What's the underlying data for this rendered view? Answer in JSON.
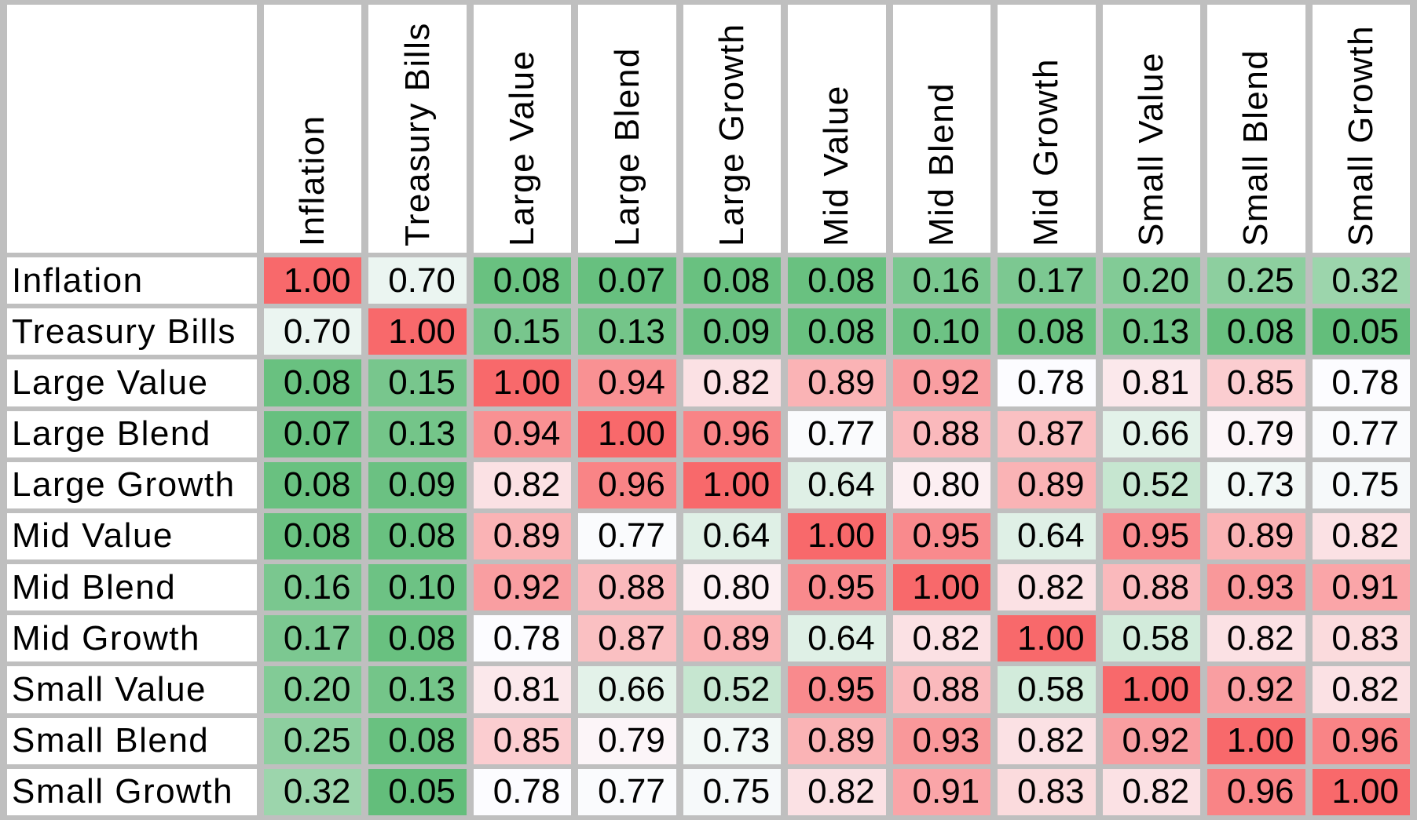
{
  "chart_data": {
    "type": "heatmap",
    "categories": [
      "Inflation",
      "Treasury Bills",
      "Large Value",
      "Large Blend",
      "Large Growth",
      "Mid Value",
      "Mid Blend",
      "Mid Growth",
      "Small Value",
      "Small Blend",
      "Small Growth"
    ],
    "matrix": [
      [
        1.0,
        0.7,
        0.08,
        0.07,
        0.08,
        0.08,
        0.16,
        0.17,
        0.2,
        0.25,
        0.32
      ],
      [
        0.7,
        1.0,
        0.15,
        0.13,
        0.09,
        0.08,
        0.1,
        0.08,
        0.13,
        0.08,
        0.05
      ],
      [
        0.08,
        0.15,
        1.0,
        0.94,
        0.82,
        0.89,
        0.92,
        0.78,
        0.81,
        0.85,
        0.78
      ],
      [
        0.07,
        0.13,
        0.94,
        1.0,
        0.96,
        0.77,
        0.88,
        0.87,
        0.66,
        0.79,
        0.77
      ],
      [
        0.08,
        0.09,
        0.82,
        0.96,
        1.0,
        0.64,
        0.8,
        0.89,
        0.52,
        0.73,
        0.75
      ],
      [
        0.08,
        0.08,
        0.89,
        0.77,
        0.64,
        1.0,
        0.95,
        0.64,
        0.95,
        0.89,
        0.82
      ],
      [
        0.16,
        0.1,
        0.92,
        0.88,
        0.8,
        0.95,
        1.0,
        0.82,
        0.88,
        0.93,
        0.91
      ],
      [
        0.17,
        0.08,
        0.78,
        0.87,
        0.89,
        0.64,
        0.82,
        1.0,
        0.58,
        0.82,
        0.83
      ],
      [
        0.2,
        0.13,
        0.81,
        0.66,
        0.52,
        0.95,
        0.88,
        0.58,
        1.0,
        0.92,
        0.82
      ],
      [
        0.25,
        0.08,
        0.85,
        0.79,
        0.73,
        0.89,
        0.93,
        0.82,
        0.92,
        1.0,
        0.96
      ],
      [
        0.32,
        0.05,
        0.78,
        0.77,
        0.75,
        0.82,
        0.91,
        0.83,
        0.82,
        0.96,
        1.0
      ]
    ],
    "value_decimals": 2,
    "corner_label": "",
    "color_scale": {
      "min_value": 0.05,
      "mid_value": 0.78,
      "max_value": 1.0,
      "min_color": "#63BE7B",
      "mid_color": "#FCFCFF",
      "max_color": "#F8696B"
    },
    "grid_color": "#BFBFBF",
    "text_color": "#000000",
    "legend_position": "none",
    "grid_on": true
  }
}
